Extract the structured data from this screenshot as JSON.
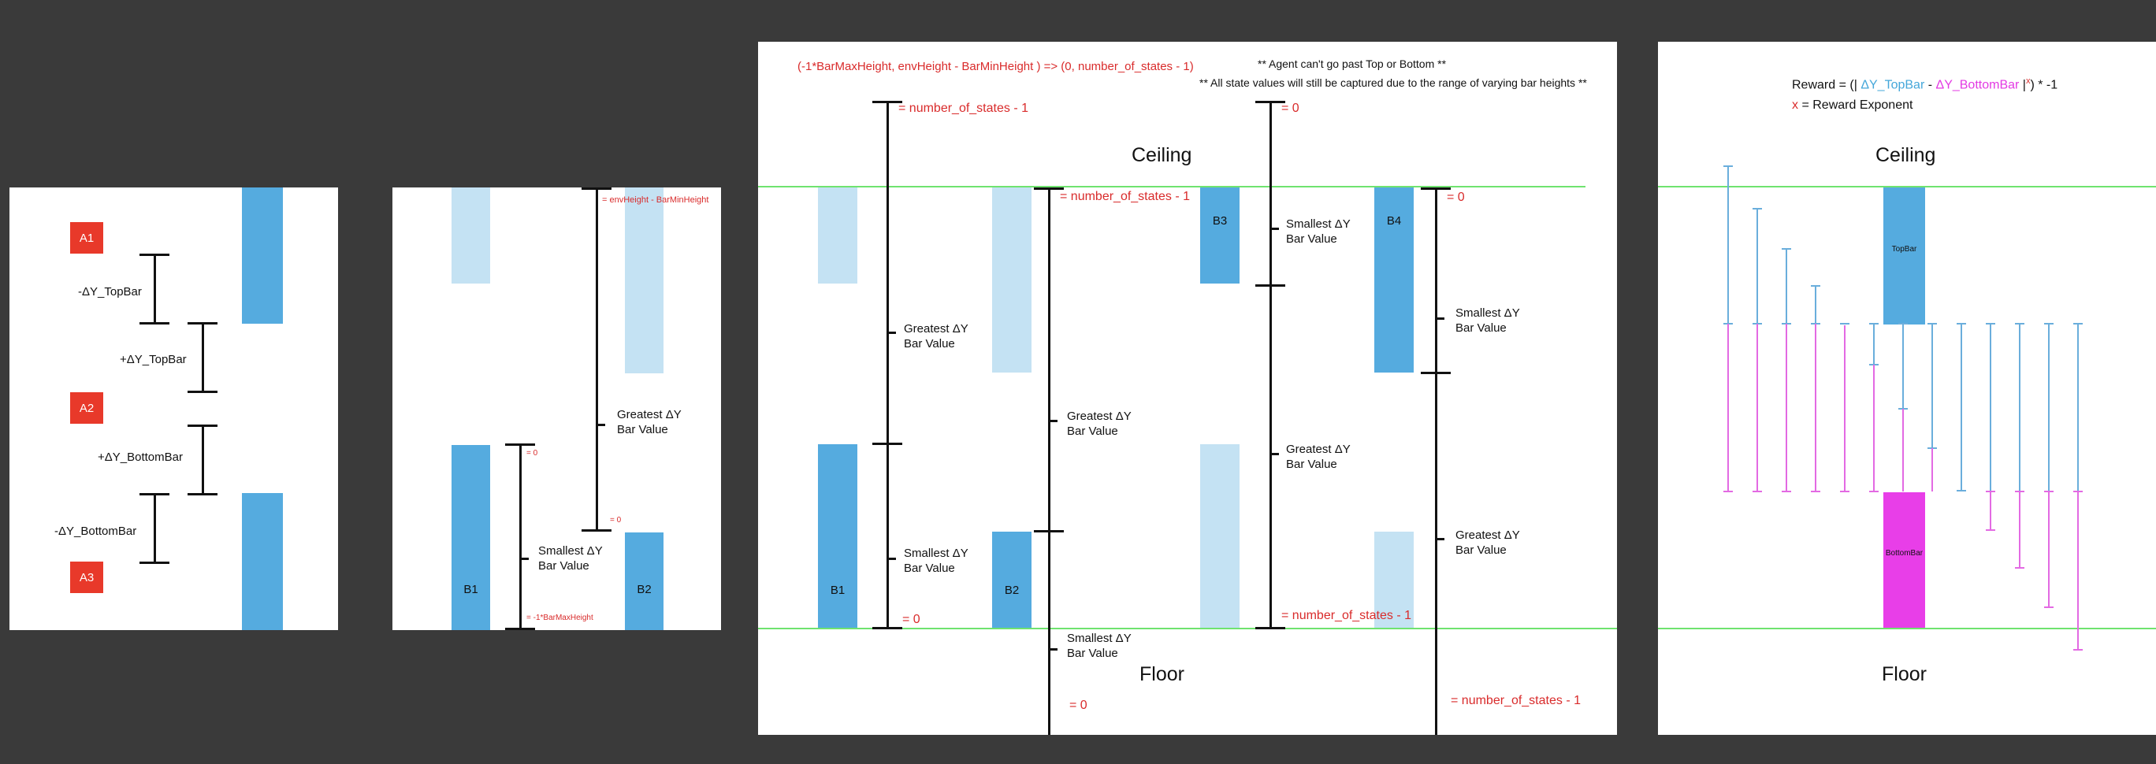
{
  "panel1": {
    "boxes": [
      "A1",
      "A2",
      "A3"
    ],
    "labels": {
      "neg_top": "-ΔY_TopBar",
      "pos_top": "+ΔY_TopBar",
      "pos_bottom": "+ΔY_BottomBar",
      "neg_bottom": "-ΔY_BottomBar"
    }
  },
  "panel2": {
    "bar_labels": {
      "b1": "B1",
      "b2": "B2"
    },
    "smallest_label": "Smallest ΔY\nBar Value",
    "greatest_label": "Greatest ΔY\nBar Value",
    "red": {
      "env_height": "= envHeight - BarMinHeight",
      "zero_a": "= 0",
      "zero_b": "= 0",
      "neg_max": "= -1*BarMaxHeight"
    }
  },
  "panel3": {
    "mapping": "(-1*BarMaxHeight, envHeight - BarMinHeight )  => (0, number_of_states - 1)",
    "note1": "** Agent can't go past Top or Bottom **",
    "note2": "** All state values will still be captured due to the range of varying bar heights **",
    "ceiling": "Ceiling",
    "floor": "Floor",
    "bar_labels": {
      "b1": "B1",
      "b2": "B2",
      "b3": "B3",
      "b4": "B4"
    },
    "greatest_label": "Greatest ΔY\nBar Value",
    "smallest_label": "Smallest ΔY\nBar Value",
    "red": {
      "nos_a": "= number_of_states - 1",
      "zero_a": "= 0",
      "nos_b": "= number_of_states - 1",
      "zero_b": "= 0",
      "zero_c": "= 0",
      "nos_c": "= number_of_states - 1",
      "zero_d": "= 0",
      "nos_d": "= number_of_states - 1"
    }
  },
  "panel4": {
    "formula": {
      "prefix": "Reward = (|",
      "topbar": "ΔY_TopBar",
      "minus": "-",
      "bottombar": "ΔY_BottomBar",
      "pipe": "|",
      "exp": "x",
      "suffix": ") * -1"
    },
    "exponent_line": {
      "x": "x",
      "text": "= Reward Exponent"
    },
    "ceiling": "Ceiling",
    "floor": "Floor",
    "topbar_label": "TopBar",
    "bottombar_label": "BottomBar"
  },
  "colors": {
    "background": "#3a3a3a",
    "bar_blue": "#55abdf",
    "bar_light_blue": "#c4e2f3",
    "box_red": "#e8392a",
    "annotation_red": "#d92b2b",
    "boundary_green": "#6fe36f",
    "bottombar_magenta": "#e83ee8",
    "whisker_blue": "#6aaedc",
    "whisker_magenta": "#e36ae3"
  }
}
